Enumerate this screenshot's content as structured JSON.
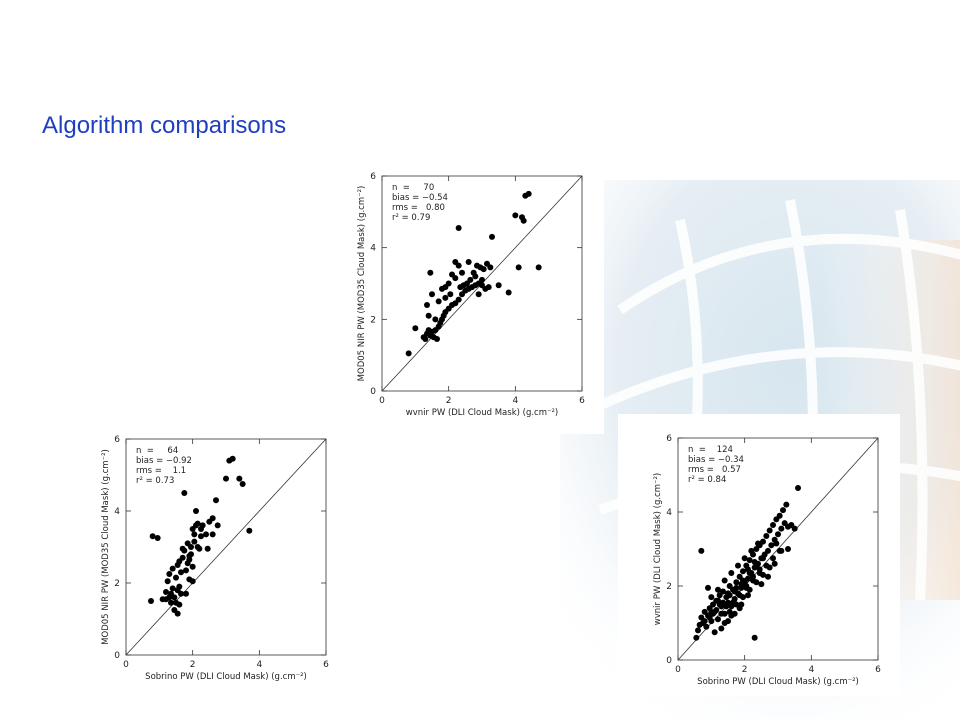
{
  "slide": {
    "title": "Algorithm comparisons"
  },
  "chart_data": [
    {
      "type": "scatter",
      "xlabel": "wvnir PW (DLI Cloud Mask) (g.cm⁻²)",
      "ylabel": "MOD05 NIR PW (MOD35 Cloud Mask) (g.cm⁻²)",
      "xlim": [
        0,
        6
      ],
      "ylim": [
        0,
        6
      ],
      "xticks": [
        0,
        2,
        4,
        6
      ],
      "yticks": [
        0,
        2,
        4,
        6
      ],
      "one_to_one_line": true,
      "stats": [
        "n  =     70",
        "bias = −0.54",
        "rms =   0.80",
        "r² = 0.79"
      ],
      "points": [
        [
          0.8,
          1.05
        ],
        [
          1.0,
          1.75
        ],
        [
          1.3,
          1.45
        ],
        [
          1.35,
          1.6
        ],
        [
          1.4,
          1.7
        ],
        [
          1.45,
          1.55
        ],
        [
          1.5,
          1.65
        ],
        [
          1.55,
          1.5
        ],
        [
          1.6,
          1.7
        ],
        [
          1.65,
          1.45
        ],
        [
          1.7,
          1.8
        ],
        [
          1.75,
          1.9
        ],
        [
          1.8,
          2.0
        ],
        [
          1.85,
          2.1
        ],
        [
          1.9,
          2.2
        ],
        [
          2.0,
          2.3
        ],
        [
          2.1,
          2.4
        ],
        [
          2.2,
          2.45
        ],
        [
          2.3,
          2.55
        ],
        [
          2.4,
          2.7
        ],
        [
          2.5,
          2.8
        ],
        [
          2.6,
          2.85
        ],
        [
          2.7,
          2.9
        ],
        [
          2.8,
          2.95
        ],
        [
          2.9,
          3.0
        ],
        [
          3.0,
          3.1
        ],
        [
          3.1,
          2.85
        ],
        [
          3.2,
          2.9
        ],
        [
          2.55,
          3.0
        ],
        [
          2.65,
          3.1
        ],
        [
          2.75,
          3.3
        ],
        [
          2.85,
          3.5
        ],
        [
          2.95,
          3.45
        ],
        [
          3.05,
          3.4
        ],
        [
          3.15,
          3.55
        ],
        [
          3.25,
          3.45
        ],
        [
          2.2,
          3.6
        ],
        [
          2.3,
          3.5
        ],
        [
          2.4,
          3.3
        ],
        [
          2.1,
          3.25
        ],
        [
          2.0,
          3.0
        ],
        [
          1.9,
          2.9
        ],
        [
          1.8,
          2.85
        ],
        [
          1.5,
          2.7
        ],
        [
          1.35,
          2.4
        ],
        [
          1.4,
          2.1
        ],
        [
          1.6,
          2.0
        ],
        [
          1.7,
          2.5
        ],
        [
          1.9,
          2.6
        ],
        [
          2.05,
          2.7
        ],
        [
          2.35,
          2.9
        ],
        [
          2.45,
          2.95
        ],
        [
          2.9,
          2.7
        ],
        [
          1.45,
          3.3
        ],
        [
          2.3,
          4.55
        ],
        [
          3.3,
          4.3
        ],
        [
          3.5,
          2.95
        ],
        [
          3.8,
          2.75
        ],
        [
          4.1,
          3.45
        ],
        [
          4.0,
          4.9
        ],
        [
          4.2,
          4.85
        ],
        [
          4.25,
          4.75
        ],
        [
          4.3,
          5.45
        ],
        [
          4.4,
          5.5
        ],
        [
          4.7,
          3.45
        ],
        [
          2.2,
          3.15
        ],
        [
          3.0,
          2.95
        ],
        [
          2.6,
          3.6
        ],
        [
          1.25,
          1.5
        ],
        [
          2.8,
          3.2
        ]
      ]
    },
    {
      "type": "scatter",
      "xlabel": "Sobrino PW (DLI Cloud Mask) (g.cm⁻²)",
      "ylabel": "MOD05 NIR PW (MOD35 Cloud Mask) (g.cm⁻²)",
      "xlim": [
        0,
        6
      ],
      "ylim": [
        0,
        6
      ],
      "xticks": [
        0,
        2,
        4,
        6
      ],
      "yticks": [
        0,
        2,
        4,
        6
      ],
      "one_to_one_line": true,
      "stats": [
        "n  =     64",
        "bias = −0.92",
        "rms =    1.1",
        "r² = 0.73"
      ],
      "points": [
        [
          0.75,
          1.5
        ],
        [
          0.8,
          3.3
        ],
        [
          0.95,
          3.25
        ],
        [
          1.1,
          1.55
        ],
        [
          1.2,
          1.75
        ],
        [
          1.25,
          2.05
        ],
        [
          1.3,
          1.6
        ],
        [
          1.35,
          1.7
        ],
        [
          1.4,
          2.4
        ],
        [
          1.45,
          1.25
        ],
        [
          1.5,
          1.45
        ],
        [
          1.55,
          1.8
        ],
        [
          1.6,
          2.6
        ],
        [
          1.65,
          1.7
        ],
        [
          1.7,
          2.7
        ],
        [
          1.75,
          2.9
        ],
        [
          1.8,
          2.35
        ],
        [
          1.85,
          3.1
        ],
        [
          1.9,
          2.75
        ],
        [
          1.95,
          3.0
        ],
        [
          2.0,
          3.5
        ],
        [
          2.05,
          3.35
        ],
        [
          2.1,
          3.6
        ],
        [
          2.2,
          2.95
        ],
        [
          2.25,
          3.3
        ],
        [
          2.3,
          3.6
        ],
        [
          2.4,
          3.35
        ],
        [
          2.5,
          3.7
        ],
        [
          2.6,
          3.8
        ],
        [
          2.7,
          4.3
        ],
        [
          1.75,
          4.5
        ],
        [
          1.6,
          1.9
        ],
        [
          1.5,
          2.15
        ],
        [
          1.55,
          2.5
        ],
        [
          1.9,
          2.1
        ],
        [
          2.0,
          2.05
        ],
        [
          1.4,
          1.85
        ],
        [
          1.45,
          1.6
        ],
        [
          1.7,
          2.95
        ],
        [
          1.85,
          2.55
        ],
        [
          2.05,
          3.15
        ],
        [
          2.15,
          3.0
        ],
        [
          1.95,
          2.8
        ],
        [
          2.1,
          4.0
        ],
        [
          2.25,
          3.5
        ],
        [
          2.45,
          2.95
        ],
        [
          2.6,
          3.35
        ],
        [
          2.75,
          3.6
        ],
        [
          3.0,
          4.9
        ],
        [
          3.1,
          5.4
        ],
        [
          3.2,
          5.45
        ],
        [
          3.4,
          4.9
        ],
        [
          3.5,
          4.75
        ],
        [
          3.7,
          3.45
        ],
        [
          1.3,
          2.25
        ],
        [
          1.2,
          1.55
        ],
        [
          1.6,
          1.4
        ],
        [
          1.65,
          2.3
        ],
        [
          1.8,
          1.7
        ],
        [
          2.0,
          2.45
        ],
        [
          1.35,
          1.45
        ],
        [
          1.55,
          1.15
        ],
        [
          1.9,
          2.65
        ],
        [
          2.15,
          3.65
        ]
      ]
    },
    {
      "type": "scatter",
      "xlabel": "Sobrino PW (DLI Cloud Mask) (g.cm⁻²)",
      "ylabel": "wvnir PW (DLI Cloud Mask) (g.cm⁻²)",
      "xlim": [
        0,
        6
      ],
      "ylim": [
        0,
        6
      ],
      "xticks": [
        0,
        2,
        4,
        6
      ],
      "yticks": [
        0,
        2,
        4,
        6
      ],
      "one_to_one_line": true,
      "stats": [
        "n  =    124",
        "bias = −0.34",
        "rms =   0.57",
        "r² = 0.84"
      ],
      "points": [
        [
          0.55,
          0.6
        ],
        [
          0.6,
          0.8
        ],
        [
          0.65,
          0.95
        ],
        [
          0.7,
          1.15
        ],
        [
          0.75,
          1.0
        ],
        [
          0.8,
          1.3
        ],
        [
          0.85,
          0.9
        ],
        [
          0.9,
          1.2
        ],
        [
          0.95,
          1.4
        ],
        [
          1.0,
          1.05
        ],
        [
          1.05,
          1.5
        ],
        [
          1.1,
          1.3
        ],
        [
          1.15,
          1.6
        ],
        [
          1.2,
          1.1
        ],
        [
          1.25,
          1.75
        ],
        [
          1.3,
          1.45
        ],
        [
          1.35,
          1.85
        ],
        [
          1.4,
          1.25
        ],
        [
          1.45,
          1.7
        ],
        [
          1.5,
          1.55
        ],
        [
          1.55,
          2.0
        ],
        [
          1.6,
          1.45
        ],
        [
          1.65,
          1.9
        ],
        [
          1.7,
          1.65
        ],
        [
          1.75,
          2.1
        ],
        [
          1.8,
          1.8
        ],
        [
          1.85,
          2.25
        ],
        [
          1.9,
          1.95
        ],
        [
          1.95,
          2.4
        ],
        [
          2.0,
          2.1
        ],
        [
          2.05,
          2.55
        ],
        [
          2.1,
          2.2
        ],
        [
          2.15,
          2.7
        ],
        [
          2.2,
          2.35
        ],
        [
          2.25,
          2.85
        ],
        [
          2.3,
          2.5
        ],
        [
          2.35,
          3.0
        ],
        [
          2.4,
          2.6
        ],
        [
          2.45,
          3.1
        ],
        [
          2.5,
          2.75
        ],
        [
          2.55,
          3.2
        ],
        [
          2.6,
          2.85
        ],
        [
          2.65,
          3.35
        ],
        [
          2.7,
          2.95
        ],
        [
          2.75,
          3.5
        ],
        [
          2.8,
          3.1
        ],
        [
          2.85,
          3.65
        ],
        [
          2.9,
          3.25
        ],
        [
          2.95,
          3.8
        ],
        [
          3.0,
          3.4
        ],
        [
          3.05,
          3.9
        ],
        [
          3.1,
          3.55
        ],
        [
          3.15,
          4.05
        ],
        [
          3.2,
          3.7
        ],
        [
          3.25,
          4.2
        ],
        [
          3.3,
          3.6
        ],
        [
          3.4,
          3.65
        ],
        [
          3.5,
          3.55
        ],
        [
          3.6,
          4.65
        ],
        [
          0.7,
          2.95
        ],
        [
          0.9,
          1.95
        ],
        [
          1.1,
          0.75
        ],
        [
          1.3,
          0.85
        ],
        [
          1.5,
          1.05
        ],
        [
          1.7,
          1.25
        ],
        [
          1.9,
          1.5
        ],
        [
          2.1,
          1.75
        ],
        [
          2.3,
          0.6
        ],
        [
          2.5,
          2.05
        ],
        [
          2.7,
          2.25
        ],
        [
          2.9,
          2.6
        ],
        [
          3.1,
          2.95
        ],
        [
          3.3,
          3.0
        ],
        [
          1.0,
          1.7
        ],
        [
          1.2,
          1.9
        ],
        [
          1.4,
          2.15
        ],
        [
          1.6,
          2.35
        ],
        [
          1.8,
          2.55
        ],
        [
          2.0,
          2.75
        ],
        [
          2.2,
          2.95
        ],
        [
          2.4,
          3.15
        ],
        [
          1.15,
          1.35
        ],
        [
          1.35,
          1.55
        ],
        [
          1.55,
          1.75
        ],
        [
          1.75,
          1.95
        ],
        [
          1.95,
          2.15
        ],
        [
          2.15,
          2.35
        ],
        [
          2.35,
          2.55
        ],
        [
          2.55,
          2.75
        ],
        [
          0.8,
          1.05
        ],
        [
          1.05,
          1.25
        ],
        [
          1.25,
          1.5
        ],
        [
          1.45,
          1.45
        ],
        [
          1.65,
          1.55
        ],
        [
          1.85,
          1.75
        ],
        [
          2.05,
          1.95
        ],
        [
          2.25,
          2.15
        ],
        [
          2.45,
          2.35
        ],
        [
          2.65,
          2.55
        ],
        [
          2.85,
          2.75
        ],
        [
          3.05,
          2.95
        ],
        [
          1.55,
          1.3
        ],
        [
          1.75,
          1.5
        ],
        [
          1.95,
          1.7
        ],
        [
          2.15,
          1.9
        ],
        [
          2.35,
          2.1
        ],
        [
          2.55,
          2.3
        ],
        [
          2.75,
          2.5
        ],
        [
          2.95,
          3.15
        ],
        [
          1.4,
          1.0
        ],
        [
          1.6,
          1.2
        ],
        [
          1.85,
          1.4
        ],
        [
          2.05,
          2.0
        ],
        [
          2.25,
          2.25
        ],
        [
          2.45,
          2.45
        ],
        [
          1.2,
          1.6
        ],
        [
          1.0,
          1.3
        ],
        [
          0.95,
          1.15
        ],
        [
          1.3,
          1.25
        ],
        [
          1.5,
          1.8
        ],
        [
          1.7,
          1.85
        ],
        [
          1.9,
          2.05
        ],
        [
          2.1,
          2.45
        ],
        [
          2.3,
          2.65
        ]
      ]
    }
  ]
}
